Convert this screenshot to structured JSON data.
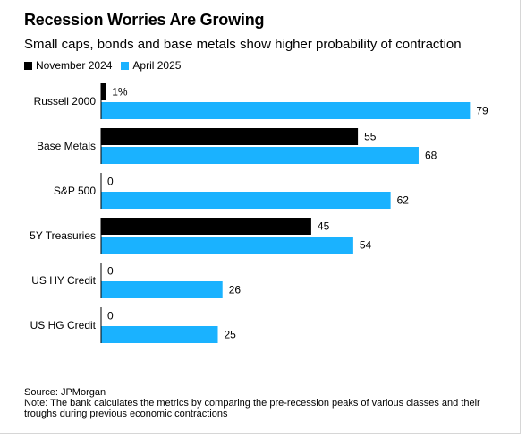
{
  "chart_data": {
    "type": "bar",
    "orientation": "horizontal",
    "title": "Recession Worries Are Growing",
    "subtitle": "Small caps, bonds and base metals show higher probability of contraction",
    "categories": [
      "Russell 2000",
      "Base Metals",
      "S&P 500",
      "5Y Treasuries",
      "US HY Credit",
      "US HG Credit"
    ],
    "series": [
      {
        "name": "November 2024",
        "color": "#000000",
        "values": [
          1,
          55,
          0,
          45,
          0,
          0
        ],
        "labels": [
          "1%",
          "55",
          "0",
          "45",
          "0",
          "0"
        ]
      },
      {
        "name": "April 2025",
        "color": "#1ab2ff",
        "values": [
          79,
          68,
          62,
          54,
          26,
          25
        ],
        "labels": [
          "79",
          "68",
          "62",
          "54",
          "26",
          "25"
        ]
      }
    ],
    "xlim": [
      0,
      79
    ],
    "grid": false,
    "legend_position": "top-left"
  },
  "footer": {
    "source": "Source: JPMorgan",
    "note": "Note: The bank calculates the metrics by comparing the pre-recession peaks of various classes and their troughs during previous economic contractions"
  }
}
